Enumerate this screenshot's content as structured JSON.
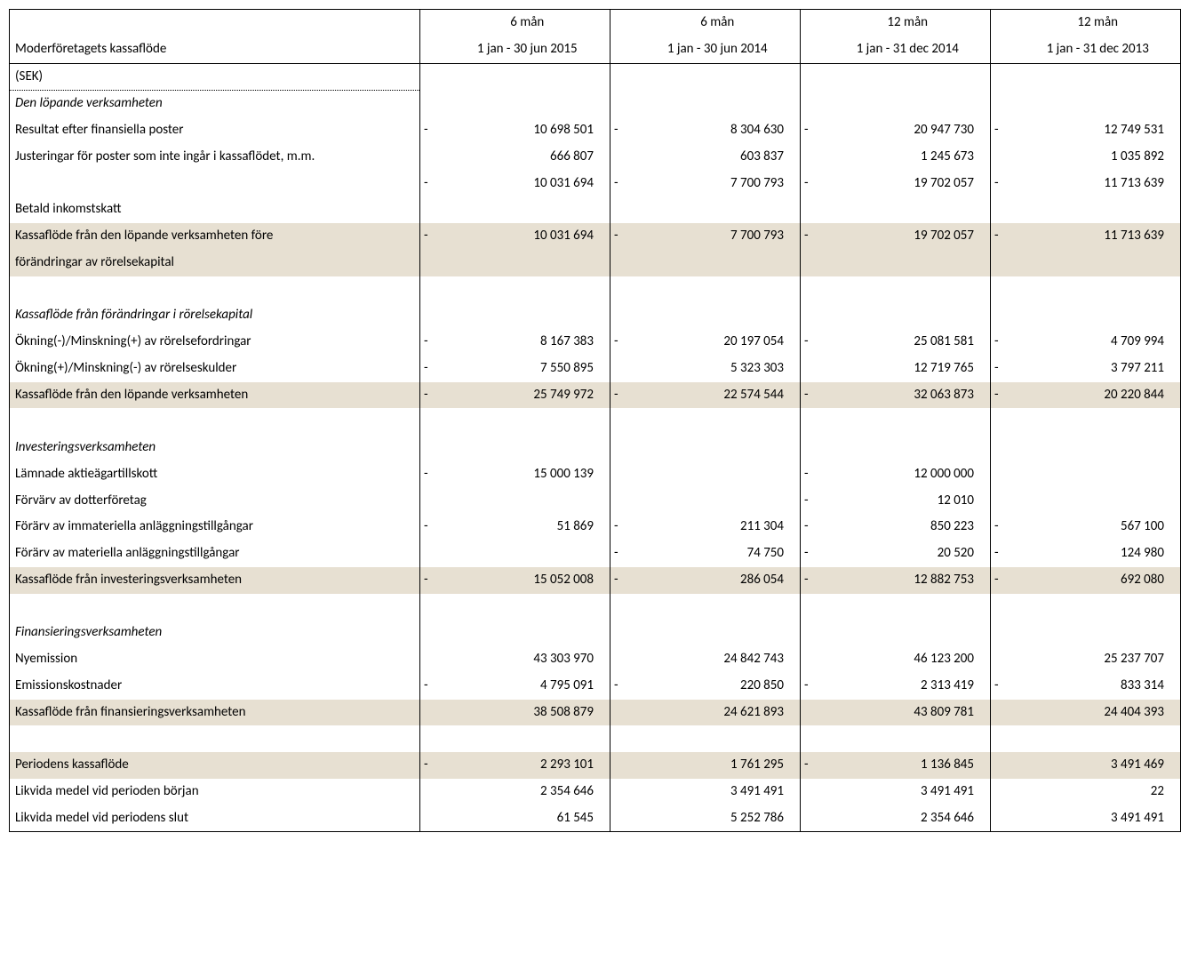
{
  "colors": {
    "shade": "#e7e0d2",
    "border": "#000000",
    "text": "#000000",
    "bg": "#ffffff"
  },
  "header": {
    "periods": [
      {
        "dur": "6 mån",
        "range": "1 jan - 30 jun 2015"
      },
      {
        "dur": "6 mån",
        "range": "1 jan - 30 jun 2014"
      },
      {
        "dur": "12 mån",
        "range": "1 jan - 31 dec 2014"
      },
      {
        "dur": "12 mån",
        "range": "1 jan - 31 dec 2013"
      }
    ],
    "title": "Moderföretagets kassaflöde",
    "unit": "(SEK)"
  },
  "rows": [
    {
      "type": "section",
      "label": "Den löpande verksamheten"
    },
    {
      "type": "data",
      "label": "Resultat efter finansiella poster",
      "v": [
        {
          "s": "-",
          "n": "10 698 501"
        },
        {
          "s": "-",
          "n": "8 304 630"
        },
        {
          "s": "-",
          "n": "20 947 730"
        },
        {
          "s": "-",
          "n": "12 749 531"
        }
      ]
    },
    {
      "type": "data",
      "label": "Justeringar för poster som inte ingår i kassaflödet, m.m.",
      "v": [
        {
          "s": "",
          "n": "666 807"
        },
        {
          "s": "",
          "n": "603 837"
        },
        {
          "s": "",
          "n": "1 245 673"
        },
        {
          "s": "",
          "n": "1 035 892"
        }
      ]
    },
    {
      "type": "data",
      "label": "",
      "v": [
        {
          "s": "-",
          "n": "10 031 694"
        },
        {
          "s": "-",
          "n": "7 700 793"
        },
        {
          "s": "-",
          "n": "19 702 057"
        },
        {
          "s": "-",
          "n": "11 713 639"
        }
      ]
    },
    {
      "type": "data",
      "label": "Betald inkomstskatt",
      "v": [
        {
          "s": "",
          "n": ""
        },
        {
          "s": "",
          "n": ""
        },
        {
          "s": "",
          "n": ""
        },
        {
          "s": "",
          "n": ""
        }
      ]
    },
    {
      "type": "shade2",
      "label1": "Kassaflöde från den löpande verksamheten före",
      "label2": "förändringar av rörelsekapital",
      "v": [
        {
          "s": "-",
          "n": "10 031 694"
        },
        {
          "s": "-",
          "n": "7 700 793"
        },
        {
          "s": "-",
          "n": "19 702 057"
        },
        {
          "s": "-",
          "n": "11 713 639"
        }
      ]
    },
    {
      "type": "blank"
    },
    {
      "type": "section",
      "label": "Kassaflöde från förändringar i rörelsekapital"
    },
    {
      "type": "data",
      "label": "Ökning(-)/Minskning(+) av rörelsefordringar",
      "v": [
        {
          "s": "-",
          "n": "8 167 383"
        },
        {
          "s": "-",
          "n": "20 197 054"
        },
        {
          "s": "-",
          "n": "25 081 581"
        },
        {
          "s": "-",
          "n": "4 709 994"
        }
      ]
    },
    {
      "type": "data",
      "label": "Ökning(+)/Minskning(-) av rörelseskulder",
      "v": [
        {
          "s": "-",
          "n": "7 550 895"
        },
        {
          "s": "",
          "n": "5 323 303"
        },
        {
          "s": "",
          "n": "12 719 765"
        },
        {
          "s": "-",
          "n": "3 797 211"
        }
      ]
    },
    {
      "type": "shade",
      "label": "Kassaflöde från den löpande verksamheten",
      "v": [
        {
          "s": "-",
          "n": "25 749 972"
        },
        {
          "s": "-",
          "n": "22 574 544"
        },
        {
          "s": "-",
          "n": "32 063 873"
        },
        {
          "s": "-",
          "n": "20 220 844"
        }
      ]
    },
    {
      "type": "blank"
    },
    {
      "type": "section",
      "label": "Investeringsverksamheten"
    },
    {
      "type": "data",
      "label": "Lämnade aktieägartillskott",
      "v": [
        {
          "s": "-",
          "n": "15 000 139"
        },
        {
          "s": "",
          "n": ""
        },
        {
          "s": "-",
          "n": "12 000 000"
        },
        {
          "s": "",
          "n": ""
        }
      ]
    },
    {
      "type": "data",
      "label": "Förvärv av dotterföretag",
      "v": [
        {
          "s": "",
          "n": ""
        },
        {
          "s": "",
          "n": ""
        },
        {
          "s": "-",
          "n": "12 010"
        },
        {
          "s": "",
          "n": ""
        }
      ]
    },
    {
      "type": "data",
      "label": "Förärv av immateriella anläggningstillgångar",
      "v": [
        {
          "s": "-",
          "n": "51 869"
        },
        {
          "s": "-",
          "n": "211 304"
        },
        {
          "s": "-",
          "n": "850 223"
        },
        {
          "s": "-",
          "n": "567 100"
        }
      ]
    },
    {
      "type": "data",
      "label": "Förärv av materiella anläggningstillgångar",
      "v": [
        {
          "s": "",
          "n": ""
        },
        {
          "s": "-",
          "n": "74 750"
        },
        {
          "s": "-",
          "n": "20 520"
        },
        {
          "s": "-",
          "n": "124 980"
        }
      ]
    },
    {
      "type": "shade",
      "label": "Kassaflöde från investeringsverksamheten",
      "v": [
        {
          "s": "-",
          "n": "15 052 008"
        },
        {
          "s": "-",
          "n": "286 054"
        },
        {
          "s": "-",
          "n": "12 882 753"
        },
        {
          "s": "-",
          "n": "692 080"
        }
      ]
    },
    {
      "type": "blank"
    },
    {
      "type": "section",
      "label": "Finansieringsverksamheten"
    },
    {
      "type": "data",
      "label": "Nyemission",
      "v": [
        {
          "s": "",
          "n": "43 303 970"
        },
        {
          "s": "",
          "n": "24 842 743"
        },
        {
          "s": "",
          "n": "46 123 200"
        },
        {
          "s": "",
          "n": "25 237 707"
        }
      ]
    },
    {
      "type": "data",
      "label": "Emissionskostnader",
      "v": [
        {
          "s": "-",
          "n": "4 795 091"
        },
        {
          "s": "-",
          "n": "220 850"
        },
        {
          "s": "-",
          "n": "2 313 419"
        },
        {
          "s": "-",
          "n": "833 314"
        }
      ]
    },
    {
      "type": "shade",
      "label": "Kassaflöde från finansieringsverksamheten",
      "v": [
        {
          "s": "",
          "n": "38 508 879"
        },
        {
          "s": "",
          "n": "24 621 893"
        },
        {
          "s": "",
          "n": "43 809 781"
        },
        {
          "s": "",
          "n": "24 404 393"
        }
      ]
    },
    {
      "type": "blank"
    },
    {
      "type": "shade",
      "label": "Periodens kassaflöde",
      "v": [
        {
          "s": "-",
          "n": "2 293 101"
        },
        {
          "s": "",
          "n": "1 761 295"
        },
        {
          "s": "-",
          "n": "1 136 845"
        },
        {
          "s": "",
          "n": "3 491 469"
        }
      ]
    },
    {
      "type": "data",
      "label": "Likvida medel vid perioden början",
      "v": [
        {
          "s": "",
          "n": "2 354 646"
        },
        {
          "s": "",
          "n": "3 491 491"
        },
        {
          "s": "",
          "n": "3 491 491"
        },
        {
          "s": "",
          "n": "22"
        }
      ]
    },
    {
      "type": "data",
      "label": "Likvida medel vid periodens slut",
      "last": true,
      "v": [
        {
          "s": "",
          "n": "61 545"
        },
        {
          "s": "",
          "n": "5 252 786"
        },
        {
          "s": "",
          "n": "2 354 646"
        },
        {
          "s": "",
          "n": "3 491 491"
        }
      ]
    }
  ]
}
